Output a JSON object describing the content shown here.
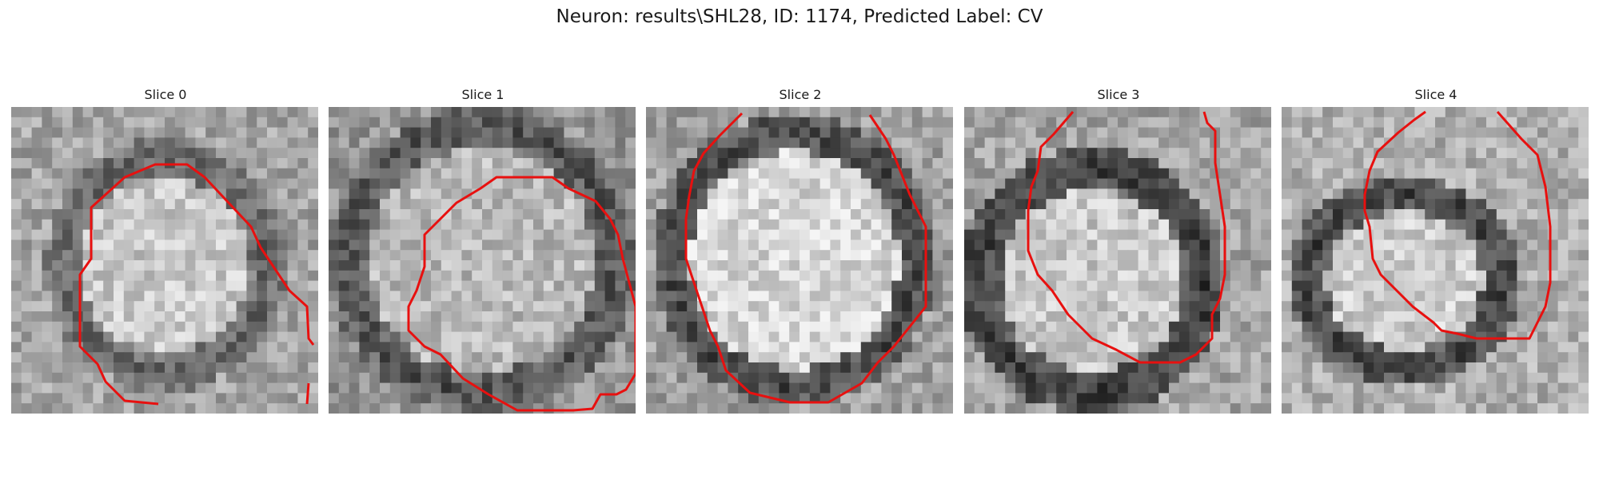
{
  "figure": {
    "title": "Neuron: results\\SHL28, ID: 1174, Predicted Label: CV"
  },
  "slices": [
    {
      "title": "Slice 0"
    },
    {
      "title": "Slice 1"
    },
    {
      "title": "Slice 2"
    },
    {
      "title": "Slice 3"
    },
    {
      "title": "Slice 4"
    }
  ],
  "contour_color": "#e8100f"
}
